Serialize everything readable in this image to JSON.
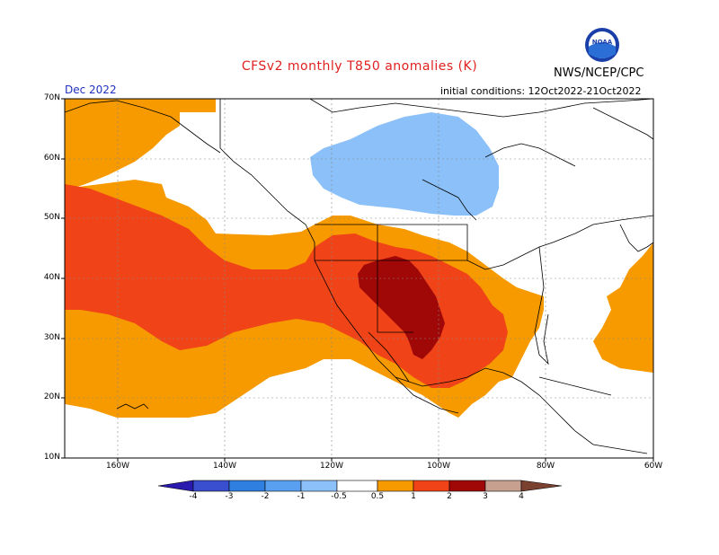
{
  "header": {
    "title": "CFSv2 monthly T850 anomalies (K)",
    "agency": "NWS/NCEP/CPC",
    "month": "Dec 2022",
    "initial_conditions": "initial conditions: 12Oct2022-21Oct2022"
  },
  "logo": {
    "text": "NOAA",
    "icon": "noaa-logo-icon"
  },
  "axes": {
    "lat_labels": [
      "70N",
      "60N",
      "50N",
      "40N",
      "30N",
      "20N",
      "10N"
    ],
    "lon_labels": [
      "160W",
      "140W",
      "120W",
      "100W",
      "80W",
      "60W"
    ]
  },
  "colorbar": {
    "labels": [
      "-4",
      "-3",
      "-2",
      "-1",
      "-0.5",
      "0.5",
      "1",
      "2",
      "3",
      "4"
    ],
    "colors": [
      "#2a1ab0",
      "#3a4ed0",
      "#2f7fe0",
      "#5aa0f0",
      "#8cc0f8",
      "#ffffff",
      "#f79a00",
      "#f04418",
      "#a00808",
      "#c8a090",
      "#7a4030"
    ]
  }
}
